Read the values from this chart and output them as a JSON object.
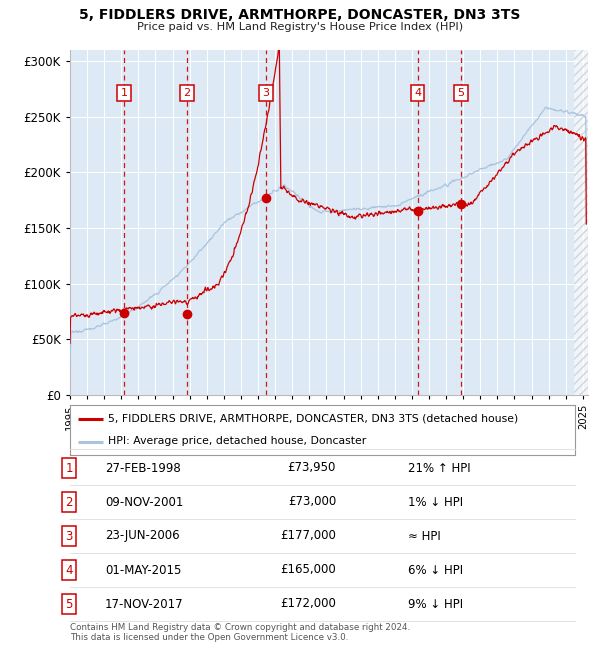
{
  "title": "5, FIDDLERS DRIVE, ARMTHORPE, DONCASTER, DN3 3TS",
  "subtitle": "Price paid vs. HM Land Registry's House Price Index (HPI)",
  "xlim": [
    1995.0,
    2025.3
  ],
  "ylim": [
    0,
    310000
  ],
  "yticks": [
    0,
    50000,
    100000,
    150000,
    200000,
    250000,
    300000
  ],
  "ytick_labels": [
    "£0",
    "£50K",
    "£100K",
    "£150K",
    "£200K",
    "£250K",
    "£300K"
  ],
  "bg_color": "#ddeaf6",
  "grid_color": "#ffffff",
  "hpi_color": "#aac4de",
  "price_color": "#cc0000",
  "dashed_line_color": "#cc0000",
  "transactions": [
    {
      "num": 1,
      "year": 1998.15,
      "price": 73950
    },
    {
      "num": 2,
      "year": 2001.85,
      "price": 73000
    },
    {
      "num": 3,
      "year": 2006.47,
      "price": 177000
    },
    {
      "num": 4,
      "year": 2015.33,
      "price": 165000
    },
    {
      "num": 5,
      "year": 2017.87,
      "price": 172000
    }
  ],
  "legend_property_label": "5, FIDDLERS DRIVE, ARMTHORPE, DONCASTER, DN3 3TS (detached house)",
  "legend_hpi_label": "HPI: Average price, detached house, Doncaster",
  "footer": "Contains HM Land Registry data © Crown copyright and database right 2024.\nThis data is licensed under the Open Government Licence v3.0.",
  "table_rows": [
    {
      "num": 1,
      "date": "27-FEB-1998",
      "price": "£73,950",
      "note": "21% ↑ HPI"
    },
    {
      "num": 2,
      "date": "09-NOV-2001",
      "price": "£73,000",
      "note": "1% ↓ HPI"
    },
    {
      "num": 3,
      "date": "23-JUN-2006",
      "price": "£177,000",
      "note": "≈ HPI"
    },
    {
      "num": 4,
      "date": "01-MAY-2015",
      "price": "£165,000",
      "note": "6% ↓ HPI"
    },
    {
      "num": 5,
      "date": "17-NOV-2017",
      "price": "£172,000",
      "note": "9% ↓ HPI"
    }
  ]
}
